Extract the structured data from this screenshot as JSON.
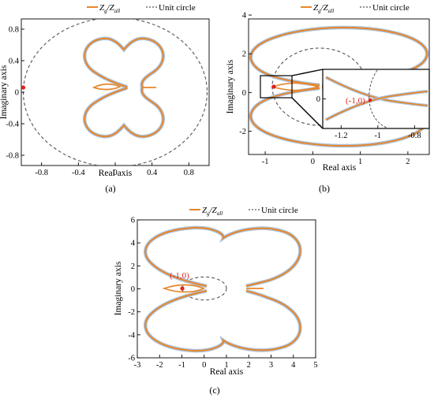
{
  "legend": {
    "curve_label": "Z_g/Z_all",
    "curve_main": "Z",
    "curve_sub1": "g",
    "curve_slash": "/Z",
    "curve_sub2": "all",
    "unit_circle_label": "Unit circle"
  },
  "colors": {
    "curve": "#e8862a",
    "curve_halo": "#a9c3df",
    "unit_circle": "#555555",
    "critical_point": "#e0201b"
  },
  "chart_data": [
    {
      "type": "line",
      "panel_label": "(a)",
      "xlabel": "Real axis",
      "ylabel": "Imaginary axis",
      "xlim": [
        -1.02,
        1.02
      ],
      "ylim": [
        -0.93,
        0.93
      ],
      "xticks": [
        "-0.8",
        "-0.4",
        "0",
        "0.4",
        "0.8"
      ],
      "yticks": [
        "0.8",
        "0.4",
        "0",
        "-0.4",
        "-0.8"
      ],
      "nyquist_curve": {
        "loop_center": [
          0.15,
          0.0
        ],
        "loop_radius": 0.36,
        "lobe_height": 0.58
      },
      "unit_circle": {
        "center": [
          0,
          0
        ],
        "radius": 1
      },
      "critical_point": [
        -1,
        0
      ]
    },
    {
      "type": "line",
      "panel_label": "(b)",
      "xlabel": "Real axis",
      "ylabel": "Imaginary axis",
      "xlim": [
        -1.35,
        2.45
      ],
      "ylim": [
        -3.2,
        3.8
      ],
      "xticks": [
        "-1",
        "0",
        "1",
        "2"
      ],
      "yticks": [
        "4",
        "2",
        "0",
        "-2"
      ],
      "nyquist_curve": {
        "loop_center": [
          0.5,
          0.0
        ],
        "loop_radius": 1.85,
        "lobe_height": 2.0
      },
      "unit_circle": {
        "center": [
          0,
          0
        ],
        "radius": 1
      },
      "critical_point": [
        -1,
        0
      ],
      "inset": {
        "xlim": [
          -1.3,
          -0.72
        ],
        "ylim": [
          -0.5,
          0.5
        ],
        "xticks": [
          "-1.2",
          "-1",
          "-0.8"
        ],
        "yticks": [
          "0"
        ],
        "annotation": "(-1,0)"
      }
    },
    {
      "type": "line",
      "panel_label": "(c)",
      "xlabel": "Real axis",
      "ylabel": "Imaginary axis",
      "xlim": [
        -3,
        5
      ],
      "ylim": [
        -6,
        6
      ],
      "xticks": [
        "-3",
        "-2",
        "-1",
        "0",
        "1",
        "2",
        "3",
        "4",
        "5"
      ],
      "yticks": [
        "6",
        "4",
        "2",
        "0",
        "-2",
        "-4",
        "-6"
      ],
      "nyquist_curve": {
        "loop_center": [
          1.0,
          0.0
        ],
        "loop_radius": 3.2,
        "lobe_height": 5.5
      },
      "unit_circle": {
        "center": [
          0,
          0
        ],
        "radius": 1
      },
      "critical_point": [
        -1,
        0
      ],
      "annotation": "(-1,0)"
    }
  ]
}
